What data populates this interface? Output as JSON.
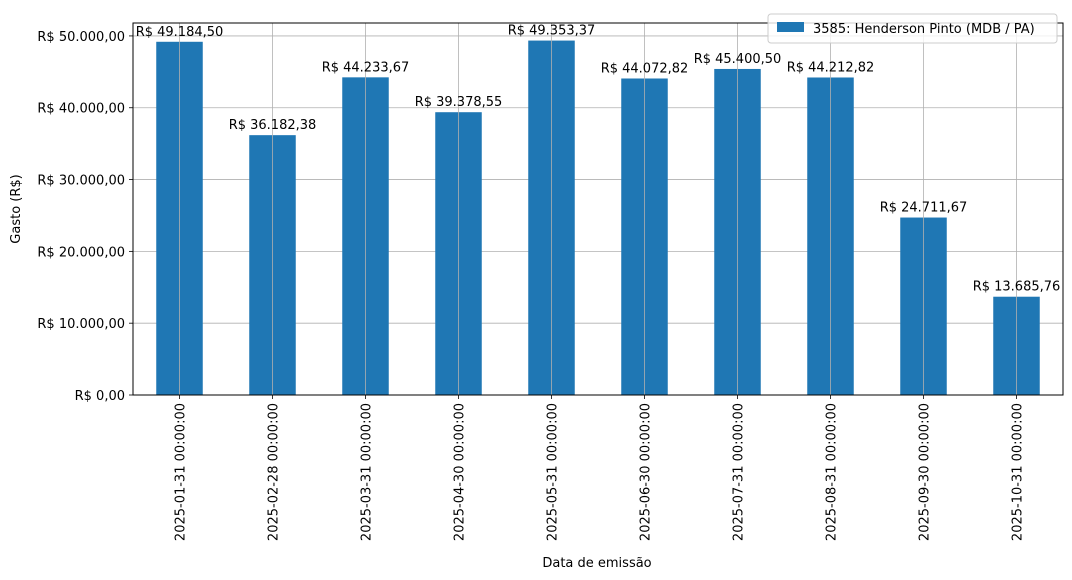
{
  "chart_data": {
    "type": "bar",
    "categories": [
      "2025-01-31 00:00:00",
      "2025-02-28 00:00:00",
      "2025-03-31 00:00:00",
      "2025-04-30 00:00:00",
      "2025-05-31 00:00:00",
      "2025-06-30 00:00:00",
      "2025-07-31 00:00:00",
      "2025-08-31 00:00:00",
      "2025-09-30 00:00:00",
      "2025-10-31 00:00:00"
    ],
    "series": [
      {
        "name": "3585: Henderson Pinto (MDB / PA)",
        "color": "#1f77b4",
        "values": [
          49184.5,
          36182.38,
          44233.67,
          39378.55,
          49353.37,
          44072.82,
          45400.5,
          44212.82,
          24711.67,
          13685.76
        ],
        "data_labels": [
          "R$ 49.184,50",
          "R$ 36.182,38",
          "R$ 44.233,67",
          "R$ 39.378,55",
          "R$ 49.353,37",
          "R$ 44.072,82",
          "R$ 45.400,50",
          "R$ 44.212,82",
          "R$ 24.711,67",
          "R$ 13.685,76"
        ]
      }
    ],
    "xlabel": "Data de emissão",
    "ylabel": "Gasto (R$)",
    "ylim": [
      0,
      51800
    ],
    "yticks": [
      0,
      10000,
      20000,
      30000,
      40000,
      50000
    ],
    "ytick_labels": [
      "R$ 0,00",
      "R$ 10.000,00",
      "R$ 20.000,00",
      "R$ 30.000,00",
      "R$ 40.000,00",
      "R$ 50.000,00"
    ],
    "grid": true,
    "legend_position": "top-right"
  }
}
